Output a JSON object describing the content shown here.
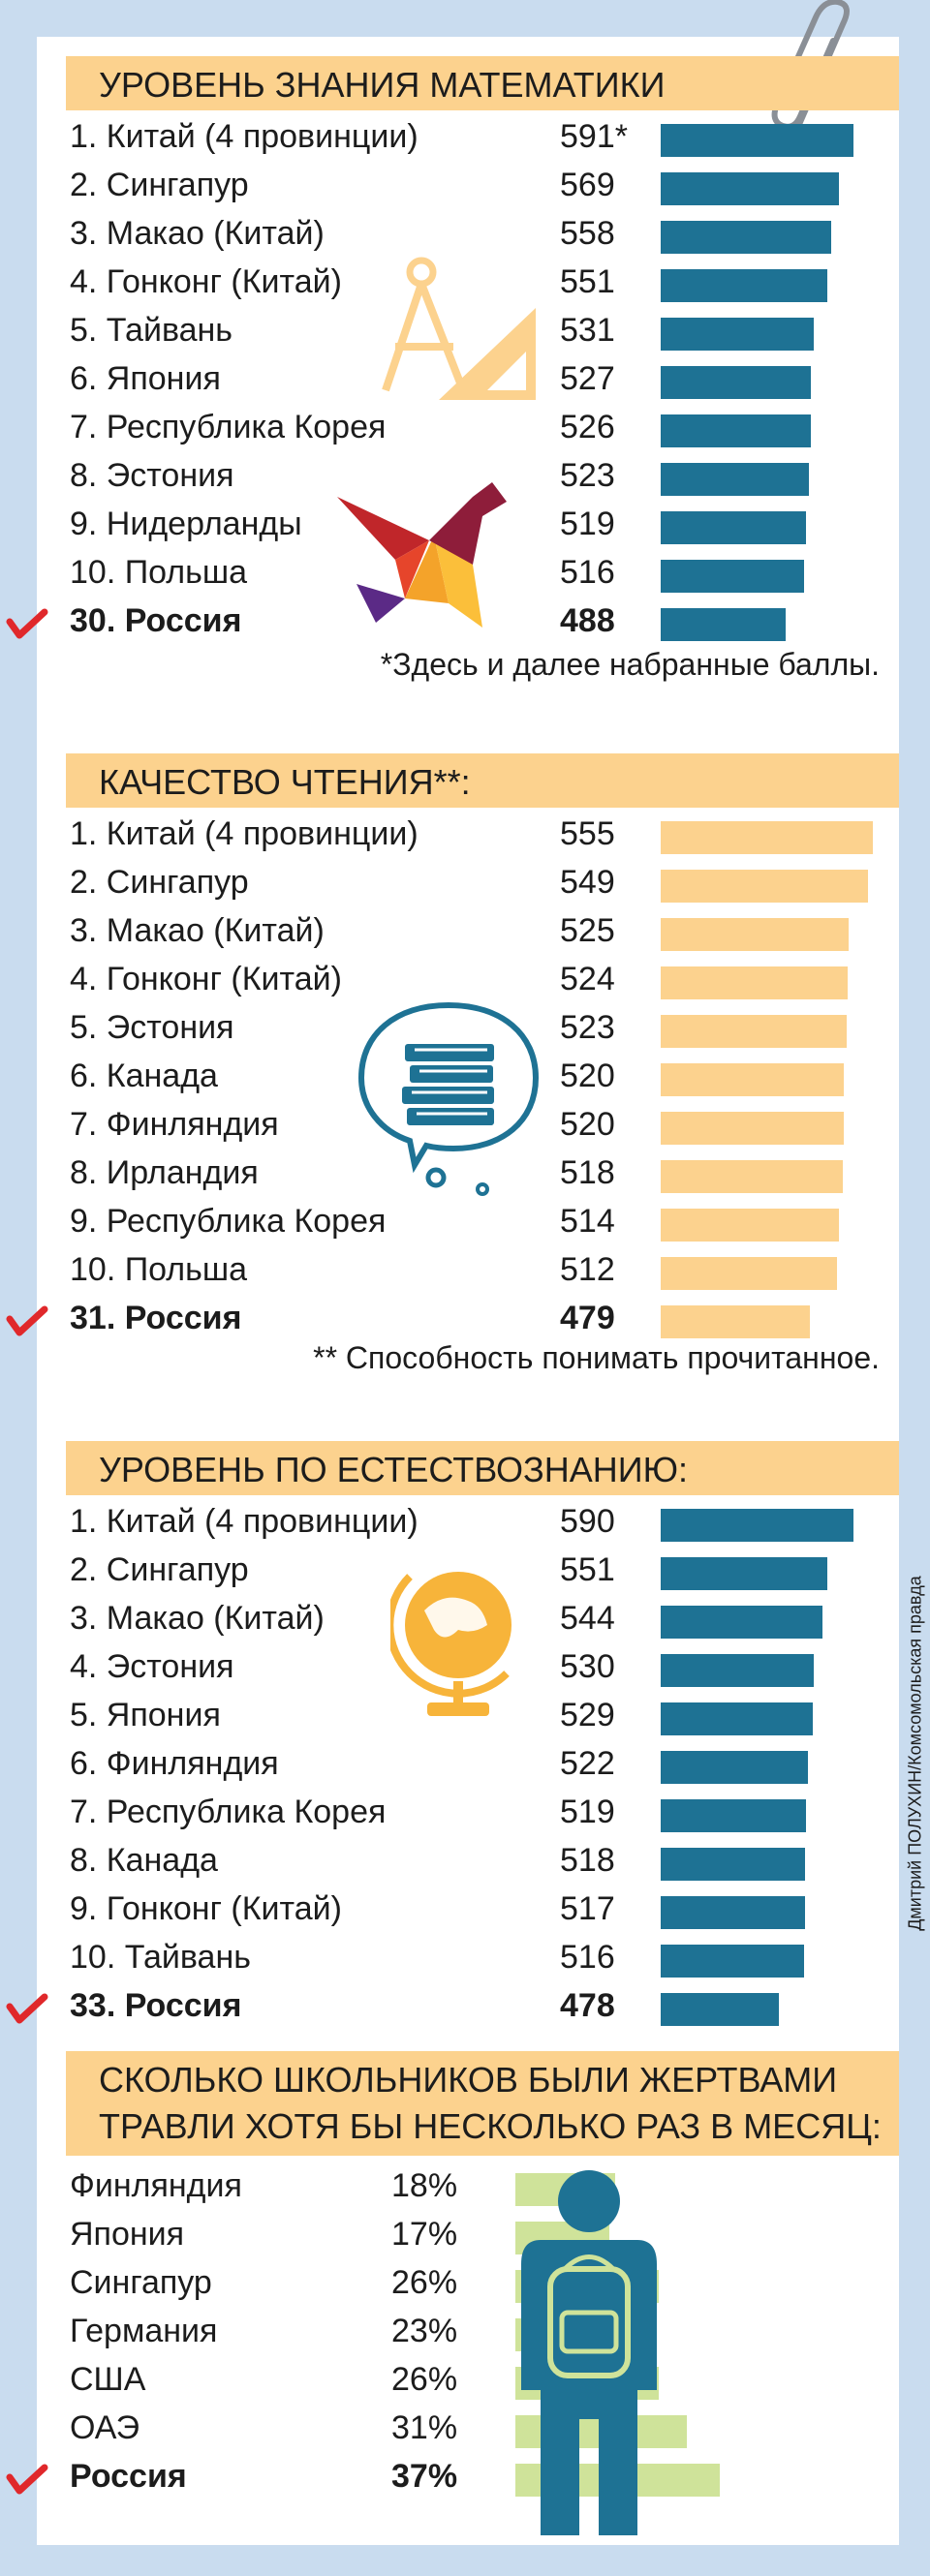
{
  "credit": "Дмитрий ПОЛУХИН/Комсомольская правда",
  "colors": {
    "teal": "#1e7294",
    "peach": "#fcd28e",
    "green": "#cfe39a",
    "red_check": "#e0282b"
  },
  "chart_data": [
    {
      "type": "bar",
      "title": "УРОВЕНЬ ЗНАНИЯ МАТЕМАТИКИ",
      "rows": [
        {
          "label": "1. Китай (4 провинции)",
          "value": 591,
          "value_text": "591*"
        },
        {
          "label": "2. Сингапур",
          "value": 569,
          "value_text": "569"
        },
        {
          "label": "3. Макао (Китай)",
          "value": 558,
          "value_text": "558"
        },
        {
          "label": "4. Гонконг (Китай)",
          "value": 551,
          "value_text": "551"
        },
        {
          "label": "5. Тайвань",
          "value": 531,
          "value_text": "531"
        },
        {
          "label": "6. Япония",
          "value": 527,
          "value_text": "527"
        },
        {
          "label": "7. Республика Корея",
          "value": 526,
          "value_text": "526"
        },
        {
          "label": "8. Эстония",
          "value": 523,
          "value_text": "523"
        },
        {
          "label": "9. Нидерланды",
          "value": 519,
          "value_text": "519"
        },
        {
          "label": "10. Польша",
          "value": 516,
          "value_text": "516"
        },
        {
          "label": "30. Россия",
          "value": 488,
          "value_text": "488"
        }
      ],
      "note": "*Здесь и далее набранные баллы."
    },
    {
      "type": "bar",
      "title": "КАЧЕСТВО ЧТЕНИЯ**:",
      "rows": [
        {
          "label": "1. Китай (4 провинции)",
          "value": 555,
          "value_text": "555"
        },
        {
          "label": "2. Сингапур",
          "value": 549,
          "value_text": "549"
        },
        {
          "label": "3. Макао (Китай)",
          "value": 525,
          "value_text": "525"
        },
        {
          "label": "4. Гонконг (Китай)",
          "value": 524,
          "value_text": "524"
        },
        {
          "label": "5. Эстония",
          "value": 523,
          "value_text": "523"
        },
        {
          "label": "6. Канада",
          "value": 520,
          "value_text": "520"
        },
        {
          "label": "7. Финляндия",
          "value": 520,
          "value_text": "520"
        },
        {
          "label": "8. Ирландия",
          "value": 518,
          "value_text": "518"
        },
        {
          "label": "9. Республика Корея",
          "value": 514,
          "value_text": "514"
        },
        {
          "label": "10. Польша",
          "value": 512,
          "value_text": "512"
        },
        {
          "label": "31. Россия",
          "value": 479,
          "value_text": "479"
        }
      ],
      "note": "** Способность понимать прочитанное."
    },
    {
      "type": "bar",
      "title": "УРОВЕНЬ ПО ЕСТЕСТВОЗНАНИЮ:",
      "rows": [
        {
          "label": "1. Китай (4 провинции)",
          "value": 590,
          "value_text": "590"
        },
        {
          "label": "2. Сингапур",
          "value": 551,
          "value_text": "551"
        },
        {
          "label": "3. Макао (Китай)",
          "value": 544,
          "value_text": "544"
        },
        {
          "label": "4. Эстония",
          "value": 530,
          "value_text": "530"
        },
        {
          "label": "5. Япония",
          "value": 529,
          "value_text": "529"
        },
        {
          "label": "6. Финляндия",
          "value": 522,
          "value_text": "522"
        },
        {
          "label": "7. Республика Корея",
          "value": 519,
          "value_text": "519"
        },
        {
          "label": "8. Канада",
          "value": 518,
          "value_text": "518"
        },
        {
          "label": "9. Гонконг (Китай)",
          "value": 517,
          "value_text": "517"
        },
        {
          "label": "10. Тайвань",
          "value": 516,
          "value_text": "516"
        },
        {
          "label": "33. Россия",
          "value": 478,
          "value_text": "478"
        }
      ],
      "note": ""
    },
    {
      "type": "bar",
      "title_line1": "СКОЛЬКО ШКОЛЬНИКОВ БЫЛИ ЖЕРТВАМИ",
      "title_line2": "ТРАВЛИ ХОТЯ БЫ НЕСКОЛЬКО РАЗ В МЕСЯЦ:",
      "rows": [
        {
          "label": "Финляндия",
          "value": 18,
          "value_text": "18%"
        },
        {
          "label": "Япония",
          "value": 17,
          "value_text": "17%"
        },
        {
          "label": "Сингапур",
          "value": 26,
          "value_text": "26%"
        },
        {
          "label": "Германия",
          "value": 23,
          "value_text": "23%"
        },
        {
          "label": "США",
          "value": 26,
          "value_text": "26%"
        },
        {
          "label": "ОАЭ",
          "value": 31,
          "value_text": "31%"
        },
        {
          "label": "Россия",
          "value": 37,
          "value_text": "37%"
        }
      ]
    }
  ]
}
